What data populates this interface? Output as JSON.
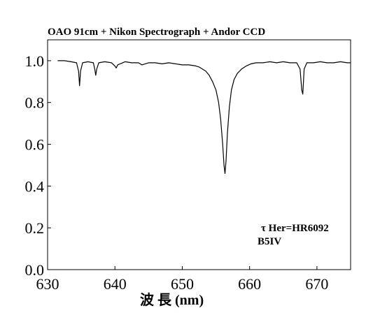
{
  "chart_data": {
    "type": "line",
    "title": "OAO 91cm + Nikon Spectrograph + Andor CCD",
    "xlabel": "波 長 (nm)",
    "ylabel": "",
    "xlim": [
      630,
      675
    ],
    "ylim": [
      0.0,
      1.1
    ],
    "xticks": [
      630,
      640,
      650,
      660,
      670
    ],
    "xtick_labels": [
      "630",
      "640",
      "650",
      "660",
      "670"
    ],
    "yticks": [
      0.0,
      0.2,
      0.4,
      0.6,
      0.8,
      1.0
    ],
    "ytick_labels": [
      "0.0",
      "0.2",
      "0.4",
      "0.6",
      "0.8",
      "1.0"
    ],
    "grid": false,
    "annotations": [
      "τ Her=HR6092",
      "B5IV"
    ],
    "series": [
      {
        "x": [
          631.5,
          632.5,
          633.5,
          634.3,
          634.6,
          634.75,
          634.9,
          635.2,
          636.0,
          636.8,
          637.0,
          637.15,
          637.3,
          637.6,
          638.5,
          639.5,
          640.0,
          640.2,
          640.4,
          641.5,
          642.5,
          643.5,
          644.0,
          645.0,
          646.0,
          647.0,
          648.0,
          649.0,
          650.0,
          651.0,
          652.0,
          652.5,
          653.0,
          653.5,
          654.0,
          654.5,
          655.0,
          655.4,
          655.7,
          656.0,
          656.2,
          656.35,
          656.5,
          656.7,
          657.0,
          657.3,
          657.7,
          658.2,
          658.8,
          659.5,
          660.2,
          661.0,
          662.0,
          663.0,
          664.0,
          665.0,
          666.0,
          667.0,
          667.5,
          667.75,
          667.9,
          668.1,
          668.5,
          669.5,
          670.5,
          671.5,
          672.5,
          673.5,
          674.5,
          675.0
        ],
        "y": [
          1.0,
          1.0,
          0.995,
          0.99,
          0.95,
          0.88,
          0.95,
          0.99,
          0.995,
          0.99,
          0.96,
          0.93,
          0.96,
          0.99,
          0.995,
          0.99,
          0.975,
          0.965,
          0.98,
          0.995,
          0.99,
          0.99,
          0.98,
          0.99,
          0.99,
          0.985,
          0.99,
          0.985,
          0.98,
          0.98,
          0.975,
          0.97,
          0.96,
          0.95,
          0.93,
          0.9,
          0.86,
          0.8,
          0.72,
          0.6,
          0.5,
          0.46,
          0.52,
          0.65,
          0.78,
          0.86,
          0.91,
          0.94,
          0.96,
          0.975,
          0.985,
          0.99,
          0.99,
          0.995,
          0.99,
          0.995,
          0.99,
          0.99,
          0.96,
          0.86,
          0.84,
          0.96,
          0.99,
          0.99,
          0.995,
          0.99,
          0.99,
          0.995,
          0.99,
          0.99
        ]
      }
    ]
  }
}
